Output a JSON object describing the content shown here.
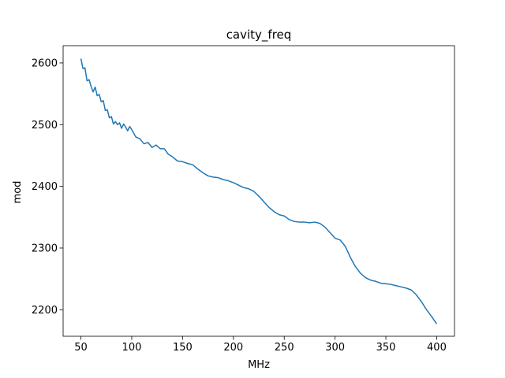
{
  "chart_data": {
    "type": "line",
    "title": "cavity_freq",
    "xlabel": "MHz",
    "ylabel": "mod",
    "xlim": [
      32.5,
      417.5
    ],
    "ylim": [
      2157,
      2628
    ],
    "grid": false,
    "legend": "none",
    "x_ticks": [
      50,
      100,
      150,
      200,
      250,
      300,
      350,
      400
    ],
    "y_ticks": [
      2200,
      2300,
      2400,
      2500,
      2600
    ],
    "series": [
      {
        "color": "#1f77b4",
        "x": [
          50,
          52,
          54,
          56,
          58,
          60,
          62,
          64,
          66,
          68,
          70,
          72,
          74,
          76,
          78,
          80,
          82,
          84,
          86,
          88,
          90,
          92,
          94,
          96,
          98,
          100,
          104,
          108,
          112,
          116,
          120,
          124,
          128,
          132,
          136,
          140,
          145,
          150,
          155,
          160,
          165,
          170,
          175,
          180,
          185,
          190,
          195,
          200,
          205,
          210,
          215,
          220,
          225,
          230,
          235,
          240,
          245,
          250,
          255,
          260,
          265,
          270,
          275,
          280,
          285,
          290,
          295,
          300,
          305,
          310,
          315,
          320,
          325,
          330,
          335,
          340,
          345,
          350,
          355,
          360,
          365,
          370,
          375,
          380,
          385,
          390,
          395,
          400
        ],
        "y": [
          2607,
          2591,
          2592,
          2571,
          2573,
          2562,
          2553,
          2561,
          2547,
          2549,
          2537,
          2539,
          2523,
          2524,
          2511,
          2513,
          2501,
          2505,
          2500,
          2503,
          2494,
          2501,
          2496,
          2490,
          2497,
          2492,
          2480,
          2477,
          2469,
          2471,
          2463,
          2467,
          2461,
          2461,
          2452,
          2448,
          2441,
          2440,
          2437,
          2435,
          2428,
          2422,
          2417,
          2415,
          2414,
          2411,
          2409,
          2406,
          2402,
          2398,
          2396,
          2392,
          2384,
          2375,
          2366,
          2359,
          2354,
          2352,
          2346,
          2343,
          2342,
          2342,
          2341,
          2342,
          2340,
          2334,
          2325,
          2316,
          2313,
          2303,
          2285,
          2270,
          2259,
          2252,
          2248,
          2246,
          2243,
          2242,
          2241,
          2239,
          2237,
          2235,
          2232,
          2224,
          2213,
          2200,
          2189,
          2177
        ]
      }
    ]
  }
}
